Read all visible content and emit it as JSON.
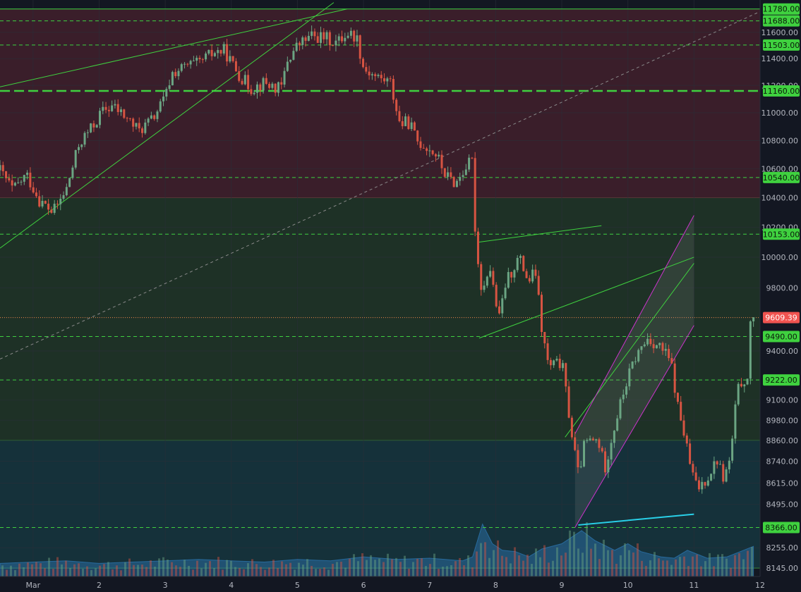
{
  "chart_data": {
    "type": "candlestick",
    "x_axis": {
      "ticks": [
        "Mar",
        "2",
        "3",
        "4",
        "5",
        "6",
        "7",
        "8",
        "9",
        "10",
        "11",
        "12"
      ],
      "tick_values": [
        1,
        2,
        3,
        4,
        5,
        6,
        7,
        8,
        9,
        10,
        11,
        12
      ],
      "range": [
        0.5,
        12.0
      ]
    },
    "y_axis": {
      "scale": "log",
      "range": [
        8100,
        11850
      ],
      "ticks": [
        11780,
        11688,
        11600,
        11503,
        11400,
        11200,
        11160,
        11000,
        10800,
        10600,
        10540,
        10400,
        10200,
        10153,
        10000,
        9800,
        9609.39,
        9490,
        9400,
        9222,
        9100,
        8980,
        8860,
        8740,
        8615,
        8495,
        8366,
        8255,
        8145
      ],
      "tick_labels": [
        "11780.00",
        "11688.00",
        "11600.00",
        "11503.00",
        "11400.00",
        "11200.00",
        "11160.00",
        "11000.00",
        "10800.00",
        "10600.00",
        "10540.00",
        "10400.00",
        "10200.00",
        "10153.00",
        "10000.00",
        "9800.00",
        "9609.39",
        "9490.00",
        "9400.00",
        "9222.00",
        "9100.00",
        "8980.00",
        "8860.00",
        "8740.00",
        "8615.00",
        "8495.00",
        "8366.00",
        "8255.00",
        "8145.00"
      ]
    },
    "level_badges": [
      {
        "value": 11780,
        "label": "11780.00",
        "kind": "level"
      },
      {
        "value": 11688,
        "label": "11688.00",
        "kind": "level"
      },
      {
        "value": 11503,
        "label": "11503.00",
        "kind": "level"
      },
      {
        "value": 11160,
        "label": "11160.00",
        "kind": "level"
      },
      {
        "value": 10540,
        "label": "10540.00",
        "kind": "level"
      },
      {
        "value": 10153,
        "label": "10153.00",
        "kind": "level"
      },
      {
        "value": 9609.39,
        "label": "9609.39",
        "kind": "last-price"
      },
      {
        "value": 9490,
        "label": "9490.00",
        "kind": "level"
      },
      {
        "value": 9222,
        "label": "9222.00",
        "kind": "level"
      },
      {
        "value": 8366,
        "label": "8366.00",
        "kind": "level"
      }
    ],
    "horizontal_levels": [
      {
        "value": 11780,
        "style": "solid"
      },
      {
        "value": 11688,
        "style": "dashed"
      },
      {
        "value": 11503,
        "style": "dashed"
      },
      {
        "value": 11160,
        "style": "dashed-bold"
      },
      {
        "value": 10540,
        "style": "dashed"
      },
      {
        "value": 10153,
        "style": "dashed"
      },
      {
        "value": 9609.39,
        "style": "dotted-last"
      },
      {
        "value": 9490,
        "style": "dashed"
      },
      {
        "value": 9222,
        "style": "dashed"
      },
      {
        "value": 8366,
        "style": "dashed"
      }
    ],
    "zones": [
      {
        "from": 10400,
        "to": 11780,
        "color": "#3a1e2a"
      },
      {
        "from": 8860,
        "to": 10400,
        "color": "#1e3126"
      },
      {
        "from": 8145,
        "to": 8860,
        "color": "#15313a"
      }
    ],
    "trend_lines": [
      {
        "points": [
          [
            0.5,
            11190
          ],
          [
            5.75,
            11780
          ]
        ],
        "color": "#3fd13f"
      },
      {
        "points": [
          [
            0.5,
            10060
          ],
          [
            5.55,
            11830
          ]
        ],
        "color": "#3fd13f"
      },
      {
        "points": [
          [
            0.5,
            9350
          ],
          [
            12.0,
            11760
          ]
        ],
        "color": "#8a8a8a",
        "style": "dashed"
      },
      {
        "points": [
          [
            7.75,
            10100
          ],
          [
            9.6,
            10210
          ]
        ],
        "color": "#3fd13f"
      },
      {
        "points": [
          [
            7.75,
            9480
          ],
          [
            11.0,
            10000
          ]
        ],
        "color": "#3fd13f"
      },
      {
        "points": [
          [
            9.05,
            8880
          ],
          [
            11.0,
            9960
          ]
        ],
        "color": "#3fd13f"
      },
      {
        "points": [
          [
            9.2,
            8900
          ],
          [
            11.0,
            10280
          ]
        ],
        "color": "#cc33cc"
      },
      {
        "points": [
          [
            9.2,
            8366
          ],
          [
            11.0,
            9560
          ]
        ],
        "color": "#cc33cc"
      },
      {
        "points": [
          [
            9.25,
            8380
          ],
          [
            11.0,
            8440
          ]
        ],
        "color": "#29d0e8"
      }
    ],
    "price_path": [
      [
        0.5,
        10590
      ],
      [
        0.7,
        10450
      ],
      [
        0.9,
        10560
      ],
      [
        1.1,
        10380
      ],
      [
        1.3,
        10300
      ],
      [
        1.5,
        10450
      ],
      [
        1.7,
        10780
      ],
      [
        1.9,
        10900
      ],
      [
        2.05,
        11010
      ],
      [
        2.2,
        11050
      ],
      [
        2.4,
        10970
      ],
      [
        2.6,
        10870
      ],
      [
        2.8,
        10950
      ],
      [
        3.0,
        11110
      ],
      [
        3.1,
        11290
      ],
      [
        3.35,
        11350
      ],
      [
        3.5,
        11360
      ],
      [
        3.6,
        11400
      ],
      [
        3.75,
        11450
      ],
      [
        3.9,
        11460
      ],
      [
        4.0,
        11370
      ],
      [
        4.15,
        11260
      ],
      [
        4.3,
        11180
      ],
      [
        4.5,
        11220
      ],
      [
        4.75,
        11170
      ],
      [
        4.85,
        11390
      ],
      [
        5.0,
        11500
      ],
      [
        5.2,
        11570
      ],
      [
        5.4,
        11560
      ],
      [
        5.6,
        11520
      ],
      [
        5.75,
        11600
      ],
      [
        5.9,
        11560
      ],
      [
        6.0,
        11330
      ],
      [
        6.2,
        11260
      ],
      [
        6.4,
        11230
      ],
      [
        6.55,
        10920
      ],
      [
        6.7,
        10930
      ],
      [
        6.8,
        10800
      ],
      [
        6.95,
        10760
      ],
      [
        7.1,
        10700
      ],
      [
        7.25,
        10550
      ],
      [
        7.4,
        10500
      ],
      [
        7.55,
        10620
      ],
      [
        7.65,
        10650
      ],
      [
        7.7,
        10060
      ],
      [
        7.8,
        9760
      ],
      [
        7.9,
        9960
      ],
      [
        8.05,
        9590
      ],
      [
        8.15,
        9830
      ],
      [
        8.35,
        10000
      ],
      [
        8.5,
        9840
      ],
      [
        8.6,
        9910
      ],
      [
        8.7,
        9520
      ],
      [
        8.8,
        9300
      ],
      [
        9.0,
        9330
      ],
      [
        9.15,
        8900
      ],
      [
        9.25,
        8660
      ],
      [
        9.35,
        8850
      ],
      [
        9.55,
        8860
      ],
      [
        9.65,
        8700
      ],
      [
        9.8,
        8950
      ],
      [
        9.95,
        9170
      ],
      [
        10.1,
        9350
      ],
      [
        10.3,
        9480
      ],
      [
        10.5,
        9420
      ],
      [
        10.65,
        9330
      ],
      [
        10.75,
        9070
      ],
      [
        10.85,
        8900
      ],
      [
        10.95,
        8700
      ],
      [
        11.05,
        8580
      ],
      [
        11.2,
        8650
      ],
      [
        11.35,
        8750
      ],
      [
        11.45,
        8640
      ],
      [
        11.55,
        8750
      ],
      [
        11.65,
        9140
      ],
      [
        11.75,
        9240
      ],
      [
        11.82,
        9180
      ],
      [
        11.85,
        9600
      ],
      [
        11.9,
        9609.39
      ]
    ],
    "volume_path": [
      [
        0.5,
        0.2
      ],
      [
        1.0,
        0.22
      ],
      [
        1.5,
        0.24
      ],
      [
        2.0,
        0.2
      ],
      [
        2.5,
        0.22
      ],
      [
        3.0,
        0.24
      ],
      [
        3.5,
        0.26
      ],
      [
        4.0,
        0.24
      ],
      [
        4.5,
        0.22
      ],
      [
        5.0,
        0.26
      ],
      [
        5.5,
        0.24
      ],
      [
        6.0,
        0.3
      ],
      [
        6.5,
        0.26
      ],
      [
        7.0,
        0.28
      ],
      [
        7.5,
        0.24
      ],
      [
        7.65,
        0.3
      ],
      [
        7.8,
        0.8
      ],
      [
        7.95,
        0.5
      ],
      [
        8.1,
        0.4
      ],
      [
        8.3,
        0.38
      ],
      [
        8.5,
        0.3
      ],
      [
        8.7,
        0.42
      ],
      [
        9.0,
        0.5
      ],
      [
        9.15,
        0.6
      ],
      [
        9.3,
        0.7
      ],
      [
        9.5,
        0.55
      ],
      [
        9.8,
        0.4
      ],
      [
        10.0,
        0.5
      ],
      [
        10.2,
        0.38
      ],
      [
        10.5,
        0.3
      ],
      [
        10.7,
        0.28
      ],
      [
        10.9,
        0.4
      ],
      [
        11.0,
        0.36
      ],
      [
        11.2,
        0.28
      ],
      [
        11.5,
        0.3
      ],
      [
        11.7,
        0.38
      ],
      [
        11.9,
        0.46
      ]
    ],
    "colors": {
      "background": "#131722",
      "bull": "#6ba583",
      "bear": "#d75442",
      "level_line": "#3fd13f",
      "badge_bg": "#3fd13f",
      "last_price_bg": "#f05350",
      "grid": "#2a2e39",
      "volume_fill": "#2e7ab8"
    }
  }
}
